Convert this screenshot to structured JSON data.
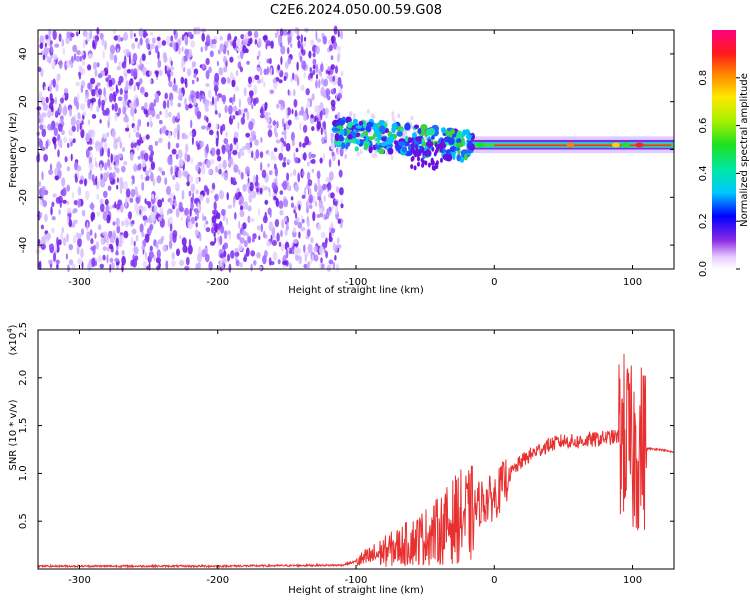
{
  "title": "C2E6.2024.050.00.59.G08",
  "chart_data": [
    {
      "type": "heatmap",
      "xlabel": "Height of straight line (km)",
      "ylabel": "Frequency (Hz)",
      "xlim": [
        -330,
        130
      ],
      "ylim": [
        -50,
        50
      ],
      "x_ticks": [
        -300,
        -200,
        -100,
        0,
        100
      ],
      "y_ticks": [
        -40,
        -20,
        0,
        20,
        40
      ],
      "colorbar": {
        "label": "Normalized spectral amplitude",
        "range": [
          0.0,
          1.0
        ],
        "ticks": [
          "0.0",
          "0.2",
          "0.4",
          "0.6",
          "0.8"
        ]
      },
      "features": {
        "noise_region_x": [
          -330,
          -110
        ],
        "signal_frequency_hz": 1.5
      }
    },
    {
      "type": "line",
      "xlabel": "Height of straight line (km)",
      "ylabel": "SNR (10 * v/v)",
      "y_multiplier": "(x10",
      "y_multiplier_exp": "4",
      "xlim": [
        -330,
        130
      ],
      "ylim": [
        0,
        2.5
      ],
      "x_ticks": [
        -300,
        -200,
        -100,
        0,
        100
      ],
      "y_ticks": [
        "0.5",
        "1.0",
        "1.5",
        "2.0",
        "2.5"
      ],
      "color": "#e83030",
      "series": [
        {
          "x": [
            -330,
            -200,
            -110,
            -95,
            -80,
            -60,
            -40,
            -25,
            -18,
            -15,
            -10,
            -5,
            0,
            5,
            10,
            20,
            30,
            40,
            50,
            60,
            70,
            80,
            88,
            95,
            100,
            105,
            110,
            120,
            130
          ],
          "y": [
            0.03,
            0.03,
            0.04,
            0.1,
            0.18,
            0.28,
            0.4,
            0.55,
            0.55,
            0.6,
            0.7,
            0.72,
            0.75,
            0.85,
            0.97,
            1.13,
            1.23,
            1.3,
            1.34,
            1.33,
            1.35,
            1.37,
            1.38,
            1.4,
            1.2,
            1.28,
            1.26,
            1.25,
            1.22
          ]
        }
      ]
    }
  ]
}
